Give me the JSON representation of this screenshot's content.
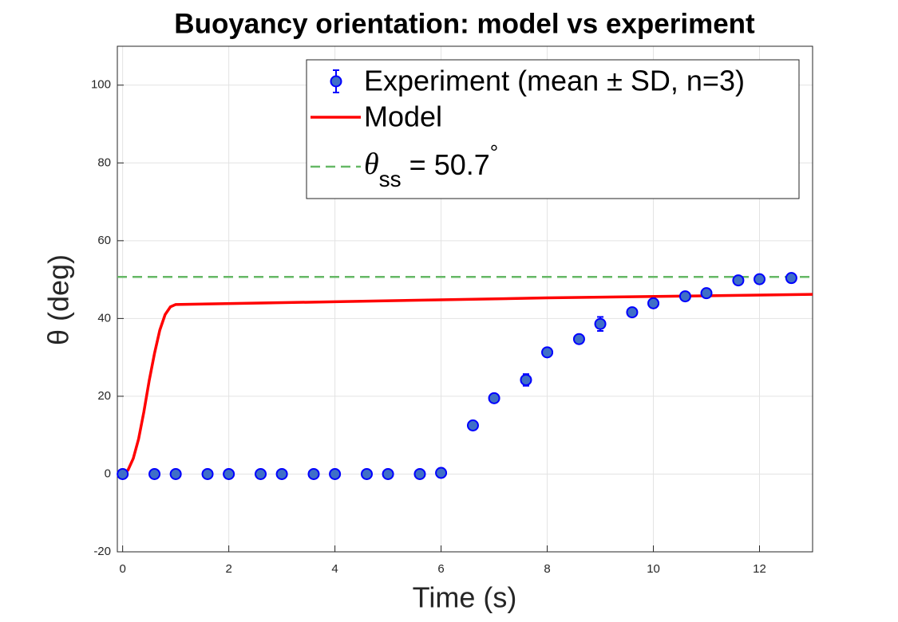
{
  "chart_data": {
    "type": "errorbar-line",
    "title": "Buoyancy orientation: model vs experiment",
    "xlabel": "Time (s)",
    "ylabel": "θ (deg)",
    "xlim": [
      -0.1,
      13
    ],
    "ylim": [
      -20,
      110
    ],
    "xticks": [
      0,
      2,
      4,
      6,
      8,
      10,
      12
    ],
    "yticks": [
      -20,
      0,
      20,
      40,
      60,
      80,
      100
    ],
    "grid": true,
    "legend_position": "top-right",
    "series": [
      {
        "name": "Experiment (mean ± SD, n=3)",
        "kind": "errorbar",
        "color": "#0000ff",
        "fill": "#3f6fc7",
        "x": [
          0,
          0.6,
          1,
          1.6,
          2,
          2.6,
          3,
          3.6,
          4,
          4.6,
          5,
          5.6,
          6,
          6.6,
          7,
          7.6,
          8,
          8.6,
          9,
          9.6,
          10,
          10.6,
          11,
          11.6,
          12,
          12.6
        ],
        "values": [
          0,
          0,
          0,
          0,
          0,
          0,
          0,
          0,
          0,
          0,
          0,
          0,
          0.3,
          12.5,
          19.5,
          24.2,
          31.3,
          34.7,
          38.6,
          41.6,
          43.9,
          45.7,
          46.5,
          49.8,
          50.1,
          50.4
        ],
        "errors": [
          0.3,
          0.3,
          0.3,
          0.3,
          0.3,
          0.3,
          0.3,
          0.3,
          0.3,
          0.3,
          0.3,
          0.3,
          0.4,
          0.6,
          0.8,
          1.5,
          0.6,
          0.6,
          1.8,
          0.7,
          0.8,
          0.7,
          0.6,
          0.6,
          0.5,
          0.6
        ]
      },
      {
        "name": "Model",
        "kind": "line",
        "color": "#ff0000",
        "x": [
          0,
          0.1,
          0.2,
          0.3,
          0.4,
          0.5,
          0.6,
          0.7,
          0.8,
          0.9,
          1.0,
          4,
          8,
          13
        ],
        "values": [
          0,
          1,
          4,
          9,
          16,
          24,
          31,
          37,
          41,
          43,
          43.6,
          44.3,
          45.3,
          46.2
        ]
      },
      {
        "kind": "hline",
        "color": "#66b866",
        "value": 50.7,
        "label": {
          "symbol": "θ",
          "subscript": "ss",
          "text": " = 50.7",
          "superscript": "°"
        }
      }
    ]
  }
}
